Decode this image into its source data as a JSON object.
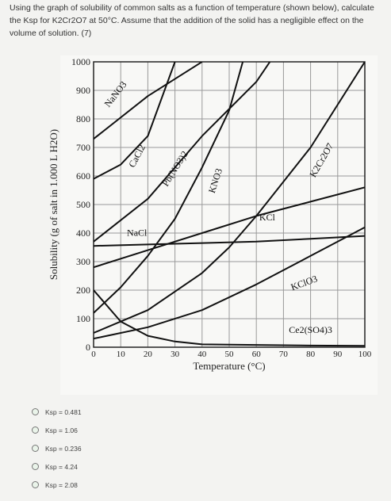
{
  "question": {
    "text": "Using the graph of solubility of common salts as a function of temperature (shown below), calculate the Ksp for K2Cr2O7 at 50°C. Assume that the addition of the solid has a negligible effect on the volume of solution. (7)"
  },
  "options": [
    {
      "label": "Ksp = 0.481"
    },
    {
      "label": "Ksp = 1.06"
    },
    {
      "label": "Ksp = 0.236"
    },
    {
      "label": "Ksp = 4.24"
    },
    {
      "label": "Ksp = 2.08"
    }
  ],
  "chart_data": {
    "type": "line",
    "xlabel": "Temperature (°C)",
    "ylabel": "Solubility (g of salt in 1.000 L H2O)",
    "xlim": [
      0,
      100
    ],
    "ylim": [
      0,
      1000
    ],
    "xticks": [
      "0",
      "10",
      "20",
      "30",
      "40",
      "50",
      "60",
      "70",
      "80",
      "90",
      "100"
    ],
    "yticks": [
      "0",
      "100",
      "200",
      "300",
      "400",
      "500",
      "600",
      "700",
      "800",
      "900",
      "1000"
    ],
    "grid": true,
    "series": [
      {
        "name": "NaNO3",
        "points": [
          [
            0,
            730
          ],
          [
            20,
            880
          ],
          [
            40,
            1000
          ]
        ]
      },
      {
        "name": "CaCl2",
        "points": [
          [
            0,
            590
          ],
          [
            10,
            640
          ],
          [
            20,
            740
          ],
          [
            30,
            1000
          ]
        ]
      },
      {
        "name": "Pb(NO3)2",
        "points": [
          [
            0,
            370
          ],
          [
            20,
            520
          ],
          [
            40,
            740
          ],
          [
            60,
            930
          ],
          [
            65,
            1000
          ]
        ]
      },
      {
        "name": "KNO3",
        "points": [
          [
            0,
            120
          ],
          [
            10,
            210
          ],
          [
            20,
            320
          ],
          [
            30,
            450
          ],
          [
            40,
            630
          ],
          [
            50,
            830
          ],
          [
            55,
            1000
          ]
        ]
      },
      {
        "name": "KCl",
        "points": [
          [
            0,
            280
          ],
          [
            20,
            340
          ],
          [
            40,
            400
          ],
          [
            60,
            460
          ],
          [
            80,
            510
          ],
          [
            100,
            560
          ]
        ]
      },
      {
        "name": "NaCl",
        "points": [
          [
            0,
            355
          ],
          [
            20,
            360
          ],
          [
            40,
            365
          ],
          [
            60,
            370
          ],
          [
            80,
            380
          ],
          [
            100,
            390
          ]
        ]
      },
      {
        "name": "K2Cr2O7",
        "points": [
          [
            0,
            50
          ],
          [
            20,
            130
          ],
          [
            40,
            260
          ],
          [
            50,
            350
          ],
          [
            60,
            460
          ],
          [
            80,
            700
          ],
          [
            100,
            1000
          ]
        ]
      },
      {
        "name": "KClO3",
        "points": [
          [
            0,
            30
          ],
          [
            20,
            70
          ],
          [
            40,
            130
          ],
          [
            60,
            220
          ],
          [
            80,
            320
          ],
          [
            100,
            420
          ]
        ]
      },
      {
        "name": "Ce2(SO4)3",
        "points": [
          [
            0,
            200
          ],
          [
            10,
            90
          ],
          [
            20,
            40
          ],
          [
            30,
            20
          ],
          [
            40,
            10
          ],
          [
            60,
            8
          ],
          [
            80,
            6
          ],
          [
            100,
            5
          ]
        ]
      }
    ]
  }
}
